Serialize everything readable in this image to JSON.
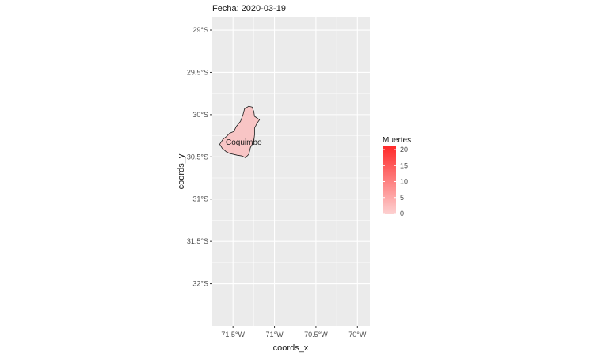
{
  "chart_data": {
    "type": "map",
    "title": "Fecha: 2020-03-19",
    "xlabel": "coords_x",
    "ylabel": "coords_y",
    "xlim": [
      -71.75,
      -69.85
    ],
    "ylim": [
      -32.5,
      -28.85
    ],
    "x_ticks": [
      {
        "value": -71.5,
        "label": "71.5°W"
      },
      {
        "value": -71.0,
        "label": "71°W"
      },
      {
        "value": -70.5,
        "label": "70.5°W"
      },
      {
        "value": -70.0,
        "label": "70°W"
      }
    ],
    "y_ticks": [
      {
        "value": -29.0,
        "label": "29°S"
      },
      {
        "value": -29.5,
        "label": "29.5°S"
      },
      {
        "value": -30.0,
        "label": "30°S"
      },
      {
        "value": -30.5,
        "label": "30.5°S"
      },
      {
        "value": -31.0,
        "label": "31°S"
      },
      {
        "value": -31.5,
        "label": "31.5°S"
      },
      {
        "value": -32.0,
        "label": "32°S"
      }
    ],
    "grid": true,
    "panel_background": "#ebebeb",
    "grid_color": "#ffffff",
    "regions": [
      {
        "name": "Coquimbo",
        "value": 0,
        "fill": "#f8c5c5",
        "label_position": [
          -71.37,
          -30.33
        ],
        "outline": [
          [
            -71.36,
            -29.93
          ],
          [
            -71.31,
            -29.9
          ],
          [
            -71.27,
            -29.91
          ],
          [
            -71.25,
            -29.96
          ],
          [
            -71.24,
            -30.02
          ],
          [
            -71.18,
            -30.06
          ],
          [
            -71.21,
            -30.1
          ],
          [
            -71.24,
            -30.16
          ],
          [
            -71.24,
            -30.24
          ],
          [
            -71.25,
            -30.32
          ],
          [
            -71.29,
            -30.39
          ],
          [
            -71.31,
            -30.47
          ],
          [
            -71.35,
            -30.51
          ],
          [
            -71.39,
            -30.49
          ],
          [
            -71.45,
            -30.48
          ],
          [
            -71.54,
            -30.46
          ],
          [
            -71.58,
            -30.44
          ],
          [
            -71.63,
            -30.4
          ],
          [
            -71.66,
            -30.35
          ],
          [
            -71.62,
            -30.29
          ],
          [
            -71.58,
            -30.26
          ],
          [
            -71.54,
            -30.22
          ],
          [
            -71.49,
            -30.2
          ],
          [
            -71.46,
            -30.14
          ],
          [
            -71.41,
            -30.08
          ],
          [
            -71.38,
            -30.0
          ]
        ]
      }
    ],
    "legend": {
      "title": "Muertes",
      "placement": "right",
      "type": "gradient",
      "range": [
        0,
        21
      ],
      "color_low": "#fdd0d0",
      "color_high": "#ff2a2a",
      "ticks": [
        {
          "value": 0,
          "label": "0"
        },
        {
          "value": 5,
          "label": "5"
        },
        {
          "value": 10,
          "label": "10"
        },
        {
          "value": 15,
          "label": "15"
        },
        {
          "value": 20,
          "label": "20"
        }
      ]
    }
  }
}
